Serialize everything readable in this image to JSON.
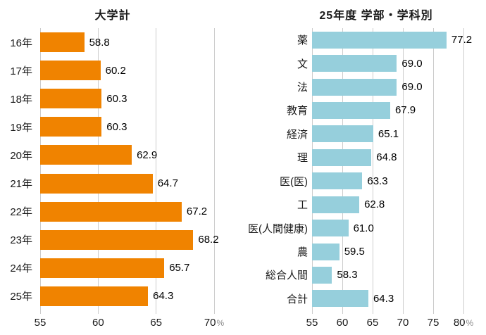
{
  "chart_data": [
    {
      "type": "bar",
      "orientation": "horizontal",
      "title": "大学計",
      "categories": [
        "16年",
        "17年",
        "18年",
        "19年",
        "20年",
        "21年",
        "22年",
        "23年",
        "24年",
        "25年"
      ],
      "values": [
        58.8,
        60.2,
        60.3,
        60.3,
        62.9,
        64.7,
        67.2,
        68.2,
        65.7,
        64.3
      ],
      "value_labels": [
        "58.8",
        "60.2",
        "60.3",
        "60.3",
        "62.9",
        "64.7",
        "67.2",
        "68.2",
        "65.7",
        "64.3"
      ],
      "bar_color": "#F08300",
      "xlim": [
        55,
        70
      ],
      "ticks": [
        55,
        60,
        65,
        70
      ],
      "tick_labels": [
        "55",
        "60",
        "65",
        "70"
      ],
      "unit": "%",
      "grid": true,
      "gridline_color": "#cccccc",
      "legend": "none"
    },
    {
      "type": "bar",
      "orientation": "horizontal",
      "title": "25年度 学部・学科別",
      "categories": [
        "薬",
        "文",
        "法",
        "教育",
        "経済",
        "理",
        "医(医)",
        "工",
        "医(人間健康)",
        "農",
        "総合人間",
        "合計"
      ],
      "values": [
        77.2,
        69.0,
        69.0,
        67.9,
        65.1,
        64.8,
        63.3,
        62.8,
        61.0,
        59.5,
        58.3,
        64.3
      ],
      "value_labels": [
        "77.2",
        "69.0",
        "69.0",
        "67.9",
        "65.1",
        "64.8",
        "63.3",
        "62.8",
        "61.0",
        "59.5",
        "58.3",
        "64.3"
      ],
      "bar_color": "#96CFDC",
      "xlim": [
        55,
        80
      ],
      "ticks": [
        55,
        60,
        65,
        70,
        75,
        80
      ],
      "tick_labels": [
        "55",
        "60",
        "65",
        "70",
        "75",
        "80"
      ],
      "unit": "%",
      "grid": true,
      "gridline_color": "#cccccc",
      "legend": "none"
    }
  ]
}
